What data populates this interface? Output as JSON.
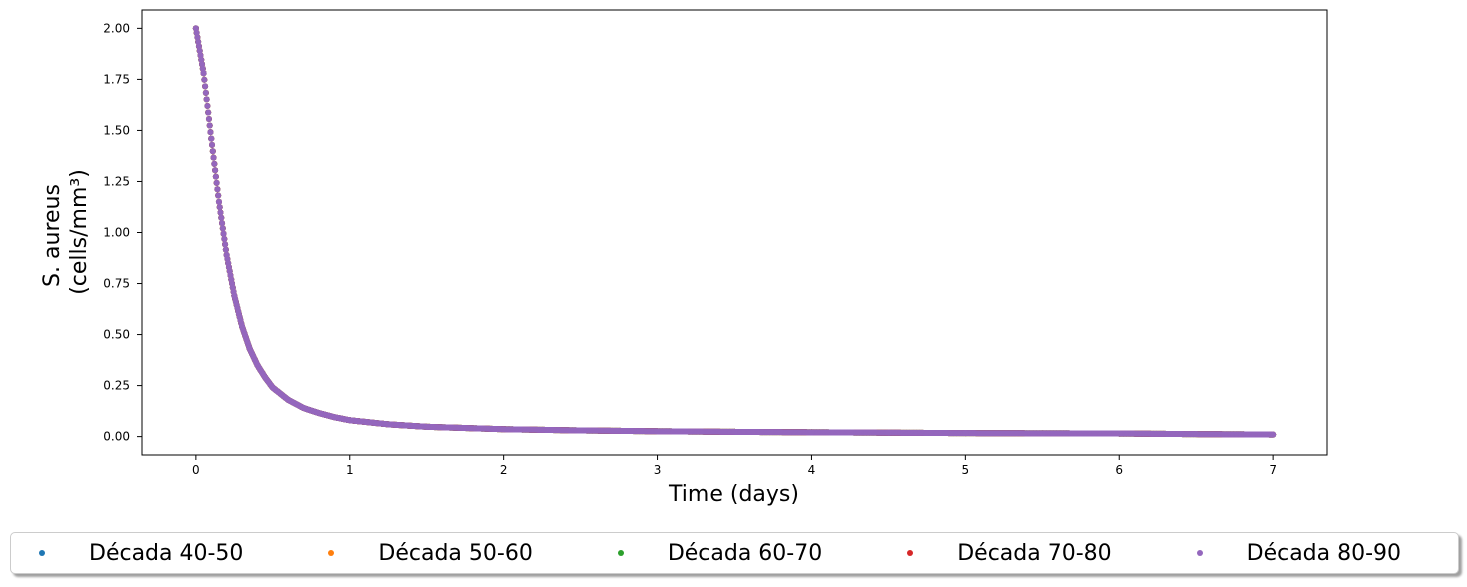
{
  "chart_data": {
    "type": "scatter",
    "title": "",
    "xlabel": "Time (days)",
    "ylabel_lines": [
      "S. aureus",
      "(cells/mm³)"
    ],
    "xlim": [
      -0.35,
      7.35
    ],
    "ylim": [
      -0.09,
      2.09
    ],
    "xticks": [
      "0",
      "1",
      "2",
      "3",
      "4",
      "5",
      "6",
      "7"
    ],
    "yticks": [
      "0.00",
      "0.25",
      "0.50",
      "0.75",
      "1.00",
      "1.25",
      "1.50",
      "1.75",
      "2.00"
    ],
    "grid": false,
    "legend_position": "bottom",
    "x": [
      0,
      0.05,
      0.1,
      0.15,
      0.2,
      0.25,
      0.3,
      0.35,
      0.4,
      0.45,
      0.5,
      0.6,
      0.7,
      0.8,
      0.9,
      1.0,
      1.25,
      1.5,
      2.0,
      2.5,
      3.0,
      3.5,
      4.0,
      4.5,
      5.0,
      5.5,
      6.0,
      6.5,
      7.0
    ],
    "series": [
      {
        "name": "Década 40-50",
        "color": "#1f77b4",
        "values": [
          2.0,
          1.78,
          1.46,
          1.15,
          0.89,
          0.69,
          0.54,
          0.43,
          0.35,
          0.29,
          0.24,
          0.18,
          0.14,
          0.115,
          0.095,
          0.08,
          0.06,
          0.048,
          0.036,
          0.03,
          0.026,
          0.023,
          0.021,
          0.019,
          0.017,
          0.016,
          0.015,
          0.012,
          0.01
        ]
      },
      {
        "name": "Década 50-60",
        "color": "#ff7f0e",
        "values": [
          2.0,
          1.78,
          1.46,
          1.15,
          0.89,
          0.69,
          0.54,
          0.43,
          0.35,
          0.29,
          0.24,
          0.18,
          0.14,
          0.115,
          0.095,
          0.08,
          0.06,
          0.048,
          0.036,
          0.03,
          0.026,
          0.023,
          0.021,
          0.019,
          0.017,
          0.016,
          0.015,
          0.012,
          0.01
        ]
      },
      {
        "name": "Década 60-70",
        "color": "#2ca02c",
        "values": [
          2.0,
          1.78,
          1.46,
          1.15,
          0.89,
          0.69,
          0.54,
          0.43,
          0.35,
          0.29,
          0.24,
          0.18,
          0.14,
          0.115,
          0.095,
          0.08,
          0.06,
          0.048,
          0.036,
          0.03,
          0.026,
          0.023,
          0.021,
          0.019,
          0.017,
          0.016,
          0.015,
          0.012,
          0.01
        ]
      },
      {
        "name": "Década 70-80",
        "color": "#d62728",
        "values": [
          2.0,
          1.78,
          1.46,
          1.15,
          0.89,
          0.69,
          0.54,
          0.43,
          0.35,
          0.29,
          0.24,
          0.18,
          0.14,
          0.115,
          0.095,
          0.08,
          0.06,
          0.048,
          0.036,
          0.03,
          0.026,
          0.023,
          0.021,
          0.019,
          0.017,
          0.016,
          0.015,
          0.012,
          0.01
        ]
      },
      {
        "name": "Década 80-90",
        "color": "#9467bd",
        "values": [
          2.0,
          1.78,
          1.46,
          1.15,
          0.89,
          0.69,
          0.54,
          0.43,
          0.35,
          0.29,
          0.24,
          0.18,
          0.14,
          0.115,
          0.095,
          0.08,
          0.06,
          0.048,
          0.036,
          0.03,
          0.026,
          0.023,
          0.021,
          0.019,
          0.017,
          0.016,
          0.015,
          0.012,
          0.01
        ]
      }
    ]
  }
}
